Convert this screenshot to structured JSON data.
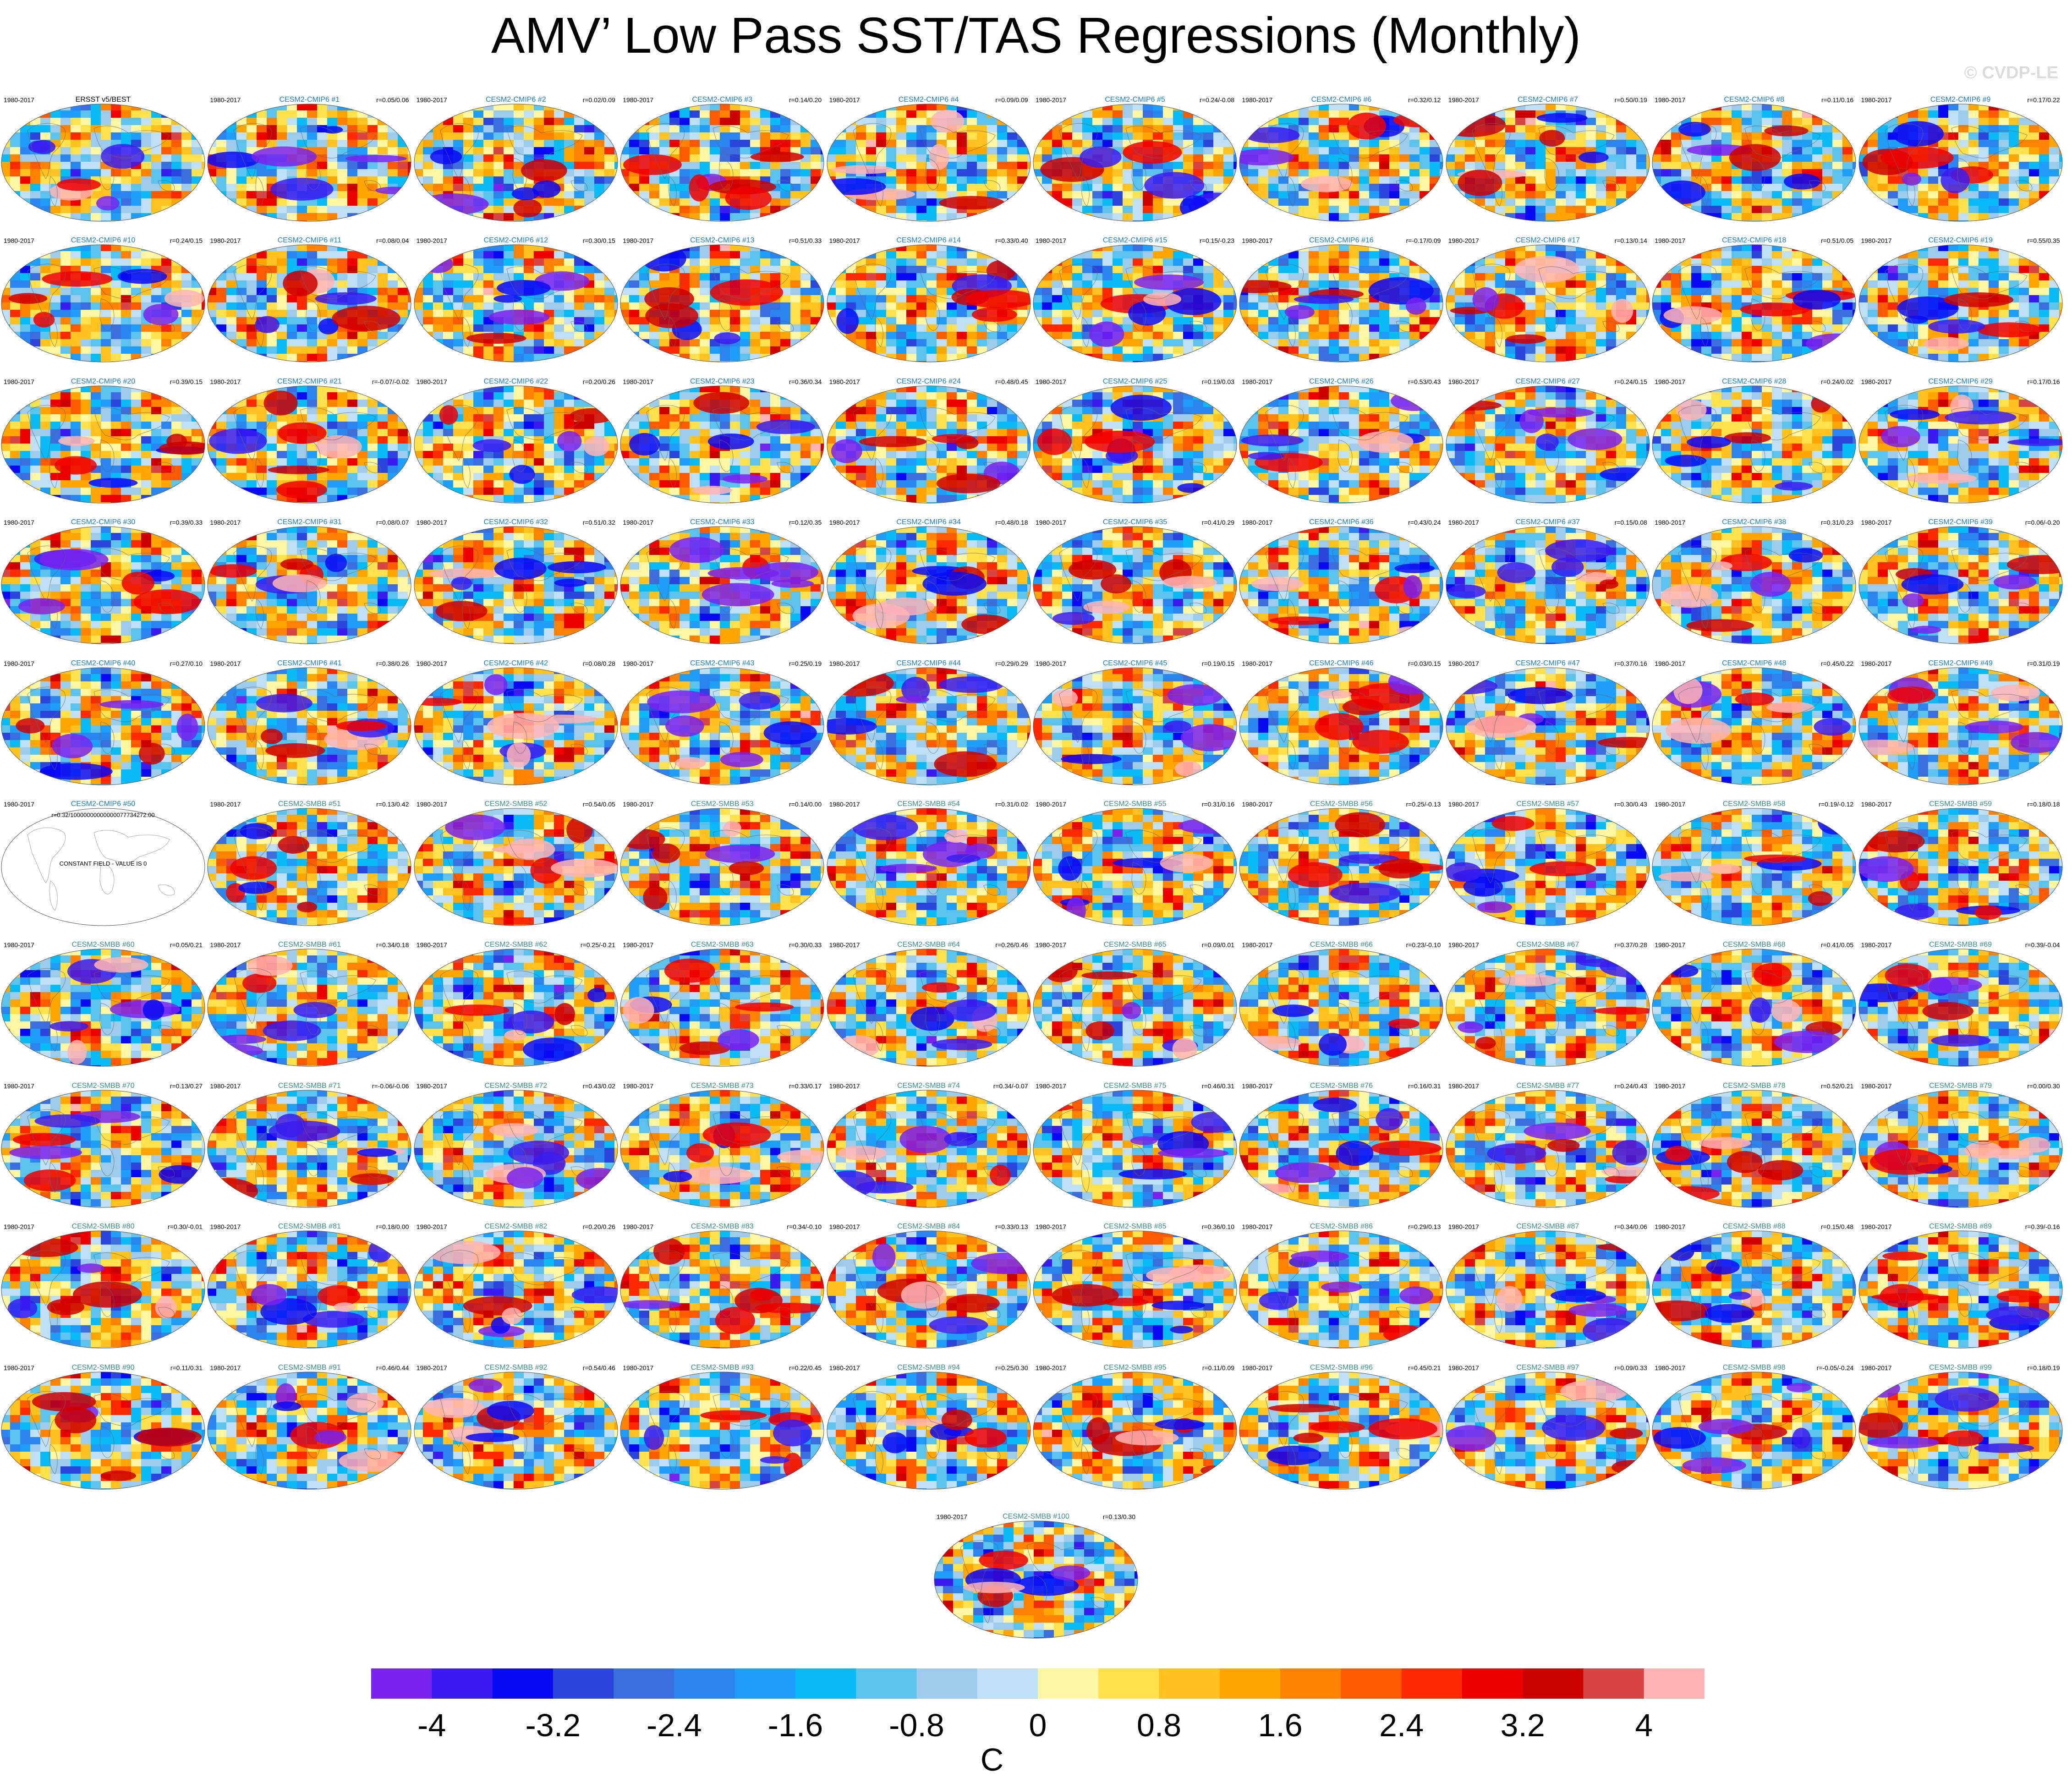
{
  "title": "AMV’ Low Pass SST/TAS Regressions (Monthly)",
  "watermark": "© CVDP-LE",
  "chart_data": {
    "type": "heatmap",
    "title": "AMV’ Low Pass SST/TAS Regressions (Monthly)",
    "units": "C",
    "colorbar": {
      "ticks": [
        "-4",
        "-3.2",
        "-2.4",
        "-1.6",
        "-0.8",
        "0",
        "0.8",
        "1.6",
        "2.4",
        "3.2",
        "4"
      ],
      "tick_values": [
        -4,
        -3.2,
        -2.4,
        -1.6,
        -0.8,
        0,
        0.8,
        1.6,
        2.4,
        3.2,
        4
      ],
      "levels_range": [
        -4.4,
        4.4
      ],
      "colors": [
        "#7a22ee",
        "#3a1cf0",
        "#0a0af5",
        "#2a46dc",
        "#3b6fe0",
        "#2b85f0",
        "#1e9ef8",
        "#08baf5",
        "#5cc3ef",
        "#9ccbeb",
        "#bfe0f4",
        "#fff6a3",
        "#ffe14d",
        "#ffc21e",
        "#ffa500",
        "#ff8200",
        "#ff5a00",
        "#ff2a00",
        "#ee0000",
        "#cc0000",
        "#d84545",
        "#ffb4b4"
      ]
    },
    "panels": [
      {
        "label": "ERSST v5/BEST",
        "period": "1980-2017",
        "corr": "",
        "color": "#000000"
      },
      {
        "label": "CESM2-CMIP6 #1",
        "period": "1980-2017",
        "corr": "r=0.05/0.06"
      },
      {
        "label": "CESM2-CMIP6 #2",
        "period": "1980-2017",
        "corr": "r=0.02/0.09"
      },
      {
        "label": "CESM2-CMIP6 #3",
        "period": "1980-2017",
        "corr": "r=0.14/0.20"
      },
      {
        "label": "CESM2-CMIP6 #4",
        "period": "1980-2017",
        "corr": "r=0.09/0.09"
      },
      {
        "label": "CESM2-CMIP6 #5",
        "period": "1980-2017",
        "corr": "r=0.24/-0.08"
      },
      {
        "label": "CESM2-CMIP6 #6",
        "period": "1980-2017",
        "corr": "r=0.32/0.12"
      },
      {
        "label": "CESM2-CMIP6 #7",
        "period": "1980-2017",
        "corr": "r=0.50/0.19"
      },
      {
        "label": "CESM2-CMIP6 #8",
        "period": "1980-2017",
        "corr": "r=0.11/0.16"
      },
      {
        "label": "CESM2-CMIP6 #9",
        "period": "1980-2017",
        "corr": "r=0.17/0.22"
      },
      {
        "label": "CESM2-CMIP6 #10",
        "period": "1980-2017",
        "corr": "r=0.24/0.15"
      },
      {
        "label": "CESM2-CMIP6 #11",
        "period": "1980-2017",
        "corr": "r=0.08/0.04"
      },
      {
        "label": "CESM2-CMIP6 #12",
        "period": "1980-2017",
        "corr": "r=0.30/0.15"
      },
      {
        "label": "CESM2-CMIP6 #13",
        "period": "1980-2017",
        "corr": "r=0.51/0.33"
      },
      {
        "label": "CESM2-CMIP6 #14",
        "period": "1980-2017",
        "corr": "r=0.33/0.40"
      },
      {
        "label": "CESM2-CMIP6 #15",
        "period": "1980-2017",
        "corr": "r=0.15/-0.23"
      },
      {
        "label": "CESM2-CMIP6 #16",
        "period": "1980-2017",
        "corr": "r=-0.17/0.09"
      },
      {
        "label": "CESM2-CMIP6 #17",
        "period": "1980-2017",
        "corr": "r=0.13/0.14"
      },
      {
        "label": "CESM2-CMIP6 #18",
        "period": "1980-2017",
        "corr": "r=0.51/0.05"
      },
      {
        "label": "CESM2-CMIP6 #19",
        "period": "1980-2017",
        "corr": "r=0.55/0.35"
      },
      {
        "label": "CESM2-CMIP6 #20",
        "period": "1980-2017",
        "corr": "r=0.39/0.15"
      },
      {
        "label": "CESM2-CMIP6 #21",
        "period": "1980-2017",
        "corr": "r=-0.07/-0.02"
      },
      {
        "label": "CESM2-CMIP6 #22",
        "period": "1980-2017",
        "corr": "r=0.20/0.26"
      },
      {
        "label": "CESM2-CMIP6 #23",
        "period": "1980-2017",
        "corr": "r=0.36/0.34"
      },
      {
        "label": "CESM2-CMIP6 #24",
        "period": "1980-2017",
        "corr": "r=0.48/0.45"
      },
      {
        "label": "CESM2-CMIP6 #25",
        "period": "1980-2017",
        "corr": "r=0.19/0.03"
      },
      {
        "label": "CESM2-CMIP6 #26",
        "period": "1980-2017",
        "corr": "r=0.53/0.43"
      },
      {
        "label": "CESM2-CMIP6 #27",
        "period": "1980-2017",
        "corr": "r=0.24/0.15"
      },
      {
        "label": "CESM2-CMIP6 #28",
        "period": "1980-2017",
        "corr": "r=0.24/0.02"
      },
      {
        "label": "CESM2-CMIP6 #29",
        "period": "1980-2017",
        "corr": "r=0.17/0.16"
      },
      {
        "label": "CESM2-CMIP6 #30",
        "period": "1980-2017",
        "corr": "r=0.39/0.33"
      },
      {
        "label": "CESM2-CMIP6 #31",
        "period": "1980-2017",
        "corr": "r=0.08/0.07"
      },
      {
        "label": "CESM2-CMIP6 #32",
        "period": "1980-2017",
        "corr": "r=0.51/0.32"
      },
      {
        "label": "CESM2-CMIP6 #33",
        "period": "1980-2017",
        "corr": "r=0.12/0.35"
      },
      {
        "label": "CESM2-CMIP6 #34",
        "period": "1980-2017",
        "corr": "r=0.48/0.18"
      },
      {
        "label": "CESM2-CMIP6 #35",
        "period": "1980-2017",
        "corr": "r=0.41/0.29"
      },
      {
        "label": "CESM2-CMIP6 #36",
        "period": "1980-2017",
        "corr": "r=0.43/0.24"
      },
      {
        "label": "CESM2-CMIP6 #37",
        "period": "1980-2017",
        "corr": "r=0.15/0.08"
      },
      {
        "label": "CESM2-CMIP6 #38",
        "period": "1980-2017",
        "corr": "r=0.31/0.23"
      },
      {
        "label": "CESM2-CMIP6 #39",
        "period": "1980-2017",
        "corr": "r=0.06/-0.20"
      },
      {
        "label": "CESM2-CMIP6 #40",
        "period": "1980-2017",
        "corr": "r=0.27/0.10"
      },
      {
        "label": "CESM2-CMIP6 #41",
        "period": "1980-2017",
        "corr": "r=0.38/0.26"
      },
      {
        "label": "CESM2-CMIP6 #42",
        "period": "1980-2017",
        "corr": "r=0.08/0.28"
      },
      {
        "label": "CESM2-CMIP6 #43",
        "period": "1980-2017",
        "corr": "r=0.25/0.19"
      },
      {
        "label": "CESM2-CMIP6 #44",
        "period": "1980-2017",
        "corr": "r=0.29/0.29"
      },
      {
        "label": "CESM2-CMIP6 #45",
        "period": "1980-2017",
        "corr": "r=0.19/0.15"
      },
      {
        "label": "CESM2-CMIP6 #46",
        "period": "1980-2017",
        "corr": "r=0.03/0.15"
      },
      {
        "label": "CESM2-CMIP6 #47",
        "period": "1980-2017",
        "corr": "r=0.37/0.16"
      },
      {
        "label": "CESM2-CMIP6 #48",
        "period": "1980-2017",
        "corr": "r=0.45/0.22"
      },
      {
        "label": "CESM2-CMIP6 #49",
        "period": "1980-2017",
        "corr": "r=0.31/0.19"
      },
      {
        "label": "CESM2-CMIP6 #50",
        "period": "1980-2017",
        "corr": "",
        "corr_note": "r=0.32/10000000000000077734272.00",
        "note": "CONSTANT FIELD - VALUE IS 0"
      },
      {
        "label": "CESM2-SMBB #51",
        "period": "1980-2017",
        "corr": "r=0.13/0.42"
      },
      {
        "label": "CESM2-SMBB #52",
        "period": "1980-2017",
        "corr": "r=0.54/0.05"
      },
      {
        "label": "CESM2-SMBB #53",
        "period": "1980-2017",
        "corr": "r=0.14/0.00"
      },
      {
        "label": "CESM2-SMBB #54",
        "period": "1980-2017",
        "corr": "r=0.31/0.02"
      },
      {
        "label": "CESM2-SMBB #55",
        "period": "1980-2017",
        "corr": "r=0.31/0.16"
      },
      {
        "label": "CESM2-SMBB #56",
        "period": "1980-2017",
        "corr": "r=0.25/-0.13"
      },
      {
        "label": "CESM2-SMBB #57",
        "period": "1980-2017",
        "corr": "r=0.30/0.43"
      },
      {
        "label": "CESM2-SMBB #58",
        "period": "1980-2017",
        "corr": "r=0.19/-0.12"
      },
      {
        "label": "CESM2-SMBB #59",
        "period": "1980-2017",
        "corr": "r=0.18/0.18"
      },
      {
        "label": "CESM2-SMBB #60",
        "period": "1980-2017",
        "corr": "r=0.05/0.21"
      },
      {
        "label": "CESM2-SMBB #61",
        "period": "1980-2017",
        "corr": "r=0.34/0.18"
      },
      {
        "label": "CESM2-SMBB #62",
        "period": "1980-2017",
        "corr": "r=0.25/-0.21"
      },
      {
        "label": "CESM2-SMBB #63",
        "period": "1980-2017",
        "corr": "r=0.30/0.33"
      },
      {
        "label": "CESM2-SMBB #64",
        "period": "1980-2017",
        "corr": "r=0.26/0.46"
      },
      {
        "label": "CESM2-SMBB #65",
        "period": "1980-2017",
        "corr": "r=0.09/0.01"
      },
      {
        "label": "CESM2-SMBB #66",
        "period": "1980-2017",
        "corr": "r=0.23/-0.10"
      },
      {
        "label": "CESM2-SMBB #67",
        "period": "1980-2017",
        "corr": "r=0.37/0.28"
      },
      {
        "label": "CESM2-SMBB #68",
        "period": "1980-2017",
        "corr": "r=0.41/0.05"
      },
      {
        "label": "CESM2-SMBB #69",
        "period": "1980-2017",
        "corr": "r=0.39/-0.04"
      },
      {
        "label": "CESM2-SMBB #70",
        "period": "1980-2017",
        "corr": "r=0.13/0.27"
      },
      {
        "label": "CESM2-SMBB #71",
        "period": "1980-2017",
        "corr": "r=-0.06/-0.06"
      },
      {
        "label": "CESM2-SMBB #72",
        "period": "1980-2017",
        "corr": "r=0.43/0.02"
      },
      {
        "label": "CESM2-SMBB #73",
        "period": "1980-2017",
        "corr": "r=0.33/0.17"
      },
      {
        "label": "CESM2-SMBB #74",
        "period": "1980-2017",
        "corr": "r=0.34/-0.07"
      },
      {
        "label": "CESM2-SMBB #75",
        "period": "1980-2017",
        "corr": "r=0.46/0.31"
      },
      {
        "label": "CESM2-SMBB #76",
        "period": "1980-2017",
        "corr": "r=0.16/0.31"
      },
      {
        "label": "CESM2-SMBB #77",
        "period": "1980-2017",
        "corr": "r=0.24/0.43"
      },
      {
        "label": "CESM2-SMBB #78",
        "period": "1980-2017",
        "corr": "r=0.52/0.21"
      },
      {
        "label": "CESM2-SMBB #79",
        "period": "1980-2017",
        "corr": "r=0.00/0.30"
      },
      {
        "label": "CESM2-SMBB #80",
        "period": "1980-2017",
        "corr": "r=0.30/-0.01"
      },
      {
        "label": "CESM2-SMBB #81",
        "period": "1980-2017",
        "corr": "r=0.18/0.00"
      },
      {
        "label": "CESM2-SMBB #82",
        "period": "1980-2017",
        "corr": "r=0.20/0.26"
      },
      {
        "label": "CESM2-SMBB #83",
        "period": "1980-2017",
        "corr": "r=0.34/-0.10"
      },
      {
        "label": "CESM2-SMBB #84",
        "period": "1980-2017",
        "corr": "r=0.33/0.13"
      },
      {
        "label": "CESM2-SMBB #85",
        "period": "1980-2017",
        "corr": "r=0.36/0.10"
      },
      {
        "label": "CESM2-SMBB #86",
        "period": "1980-2017",
        "corr": "r=0.29/0.13"
      },
      {
        "label": "CESM2-SMBB #87",
        "period": "1980-2017",
        "corr": "r=0.34/0.06"
      },
      {
        "label": "CESM2-SMBB #88",
        "period": "1980-2017",
        "corr": "r=0.15/0.48"
      },
      {
        "label": "CESM2-SMBB #89",
        "period": "1980-2017",
        "corr": "r=0.39/-0.16"
      },
      {
        "label": "CESM2-SMBB #90",
        "period": "1980-2017",
        "corr": "r=0.11/0.31"
      },
      {
        "label": "CESM2-SMBB #91",
        "period": "1980-2017",
        "corr": "r=0.46/0.44"
      },
      {
        "label": "CESM2-SMBB #92",
        "period": "1980-2017",
        "corr": "r=0.54/0.46"
      },
      {
        "label": "CESM2-SMBB #93",
        "period": "1980-2017",
        "corr": "r=0.22/0.45"
      },
      {
        "label": "CESM2-SMBB #94",
        "period": "1980-2017",
        "corr": "r=0.25/0.30"
      },
      {
        "label": "CESM2-SMBB #95",
        "period": "1980-2017",
        "corr": "r=0.11/0.09"
      },
      {
        "label": "CESM2-SMBB #96",
        "period": "1980-2017",
        "corr": "r=0.45/0.21"
      },
      {
        "label": "CESM2-SMBB #97",
        "period": "1980-2017",
        "corr": "r=0.09/0.33"
      },
      {
        "label": "CESM2-SMBB #98",
        "period": "1980-2017",
        "corr": "r=-0.05/-0.24"
      },
      {
        "label": "CESM2-SMBB #99",
        "period": "1980-2017",
        "corr": "r=0.18/0.19"
      },
      {
        "label": "CESM2-SMBB #100",
        "period": "1980-2017",
        "corr": "r=0.13/0.30"
      }
    ]
  }
}
